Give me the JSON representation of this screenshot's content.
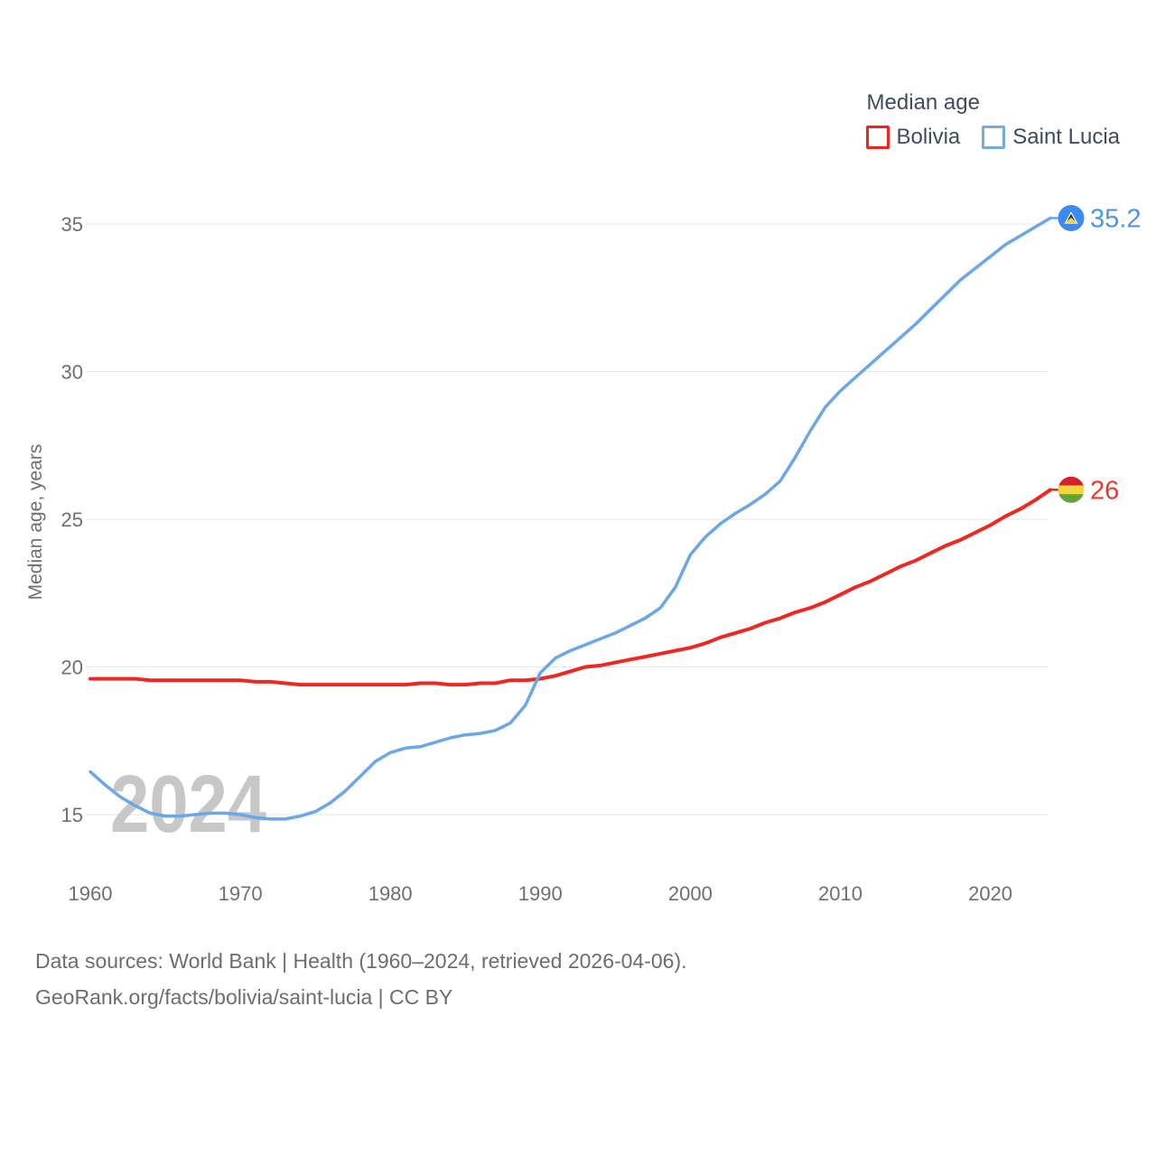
{
  "legend": {
    "title": "Median age",
    "items": [
      {
        "label": "Bolivia",
        "color": "#ee2722",
        "swatch_icon": "red-outline-box"
      },
      {
        "label": "Saint Lucia",
        "color": "#6ba7e6",
        "swatch_icon": "blue-outline-box"
      }
    ]
  },
  "watermark": "2024",
  "footer": {
    "line1": "Data sources: World Bank | Health (1960–2024, retrieved 2026-04-06).",
    "line2": "GeoRank.org/facts/bolivia/saint-lucia | CC BY"
  },
  "chart_data": {
    "type": "line",
    "title": "Median age",
    "xlabel": "",
    "ylabel": "Median age, years",
    "x_range": [
      1960,
      2024
    ],
    "x_step": 1,
    "ylim": [
      13.2,
      36.6
    ],
    "yticks": [
      15,
      20,
      25,
      30,
      35
    ],
    "xticks": [
      1960,
      1970,
      1980,
      1990,
      2000,
      2010,
      2020
    ],
    "grid": "horizontal",
    "legend_position": "top-right",
    "series": [
      {
        "name": "Bolivia",
        "color": "#ee2722",
        "end_label": "26",
        "marker_icon": "bolivia-flag-icon",
        "values": [
          19.6,
          19.6,
          19.6,
          19.6,
          19.55,
          19.55,
          19.55,
          19.55,
          19.55,
          19.55,
          19.55,
          19.5,
          19.5,
          19.45,
          19.4,
          19.4,
          19.4,
          19.4,
          19.4,
          19.4,
          19.4,
          19.4,
          19.45,
          19.45,
          19.4,
          19.4,
          19.45,
          19.45,
          19.55,
          19.55,
          19.6,
          19.7,
          19.85,
          20.0,
          20.05,
          20.15,
          20.25,
          20.35,
          20.45,
          20.55,
          20.65,
          20.8,
          21.0,
          21.15,
          21.3,
          21.5,
          21.65,
          21.85,
          22.0,
          22.2,
          22.45,
          22.7,
          22.9,
          23.15,
          23.4,
          23.6,
          23.85,
          24.1,
          24.3,
          24.55,
          24.8,
          25.1,
          25.35,
          25.65,
          26.0
        ]
      },
      {
        "name": "Saint Lucia",
        "color": "#6ba7e6",
        "end_label": "35.2",
        "marker_icon": "saint-lucia-flag-icon",
        "values": [
          16.45,
          16.0,
          15.6,
          15.3,
          15.05,
          14.95,
          14.95,
          15.0,
          15.05,
          15.05,
          15.0,
          14.9,
          14.85,
          14.85,
          14.95,
          15.1,
          15.4,
          15.8,
          16.3,
          16.8,
          17.1,
          17.25,
          17.3,
          17.45,
          17.6,
          17.7,
          17.75,
          17.85,
          18.1,
          18.7,
          19.8,
          20.3,
          20.55,
          20.75,
          20.95,
          21.15,
          21.4,
          21.65,
          22.0,
          22.7,
          23.8,
          24.4,
          24.85,
          25.2,
          25.5,
          25.85,
          26.3,
          27.1,
          28.0,
          28.8,
          29.35,
          29.8,
          30.25,
          30.7,
          31.15,
          31.6,
          32.1,
          32.6,
          33.1,
          33.5,
          33.9,
          34.3,
          34.6,
          34.9,
          35.2
        ]
      }
    ]
  }
}
